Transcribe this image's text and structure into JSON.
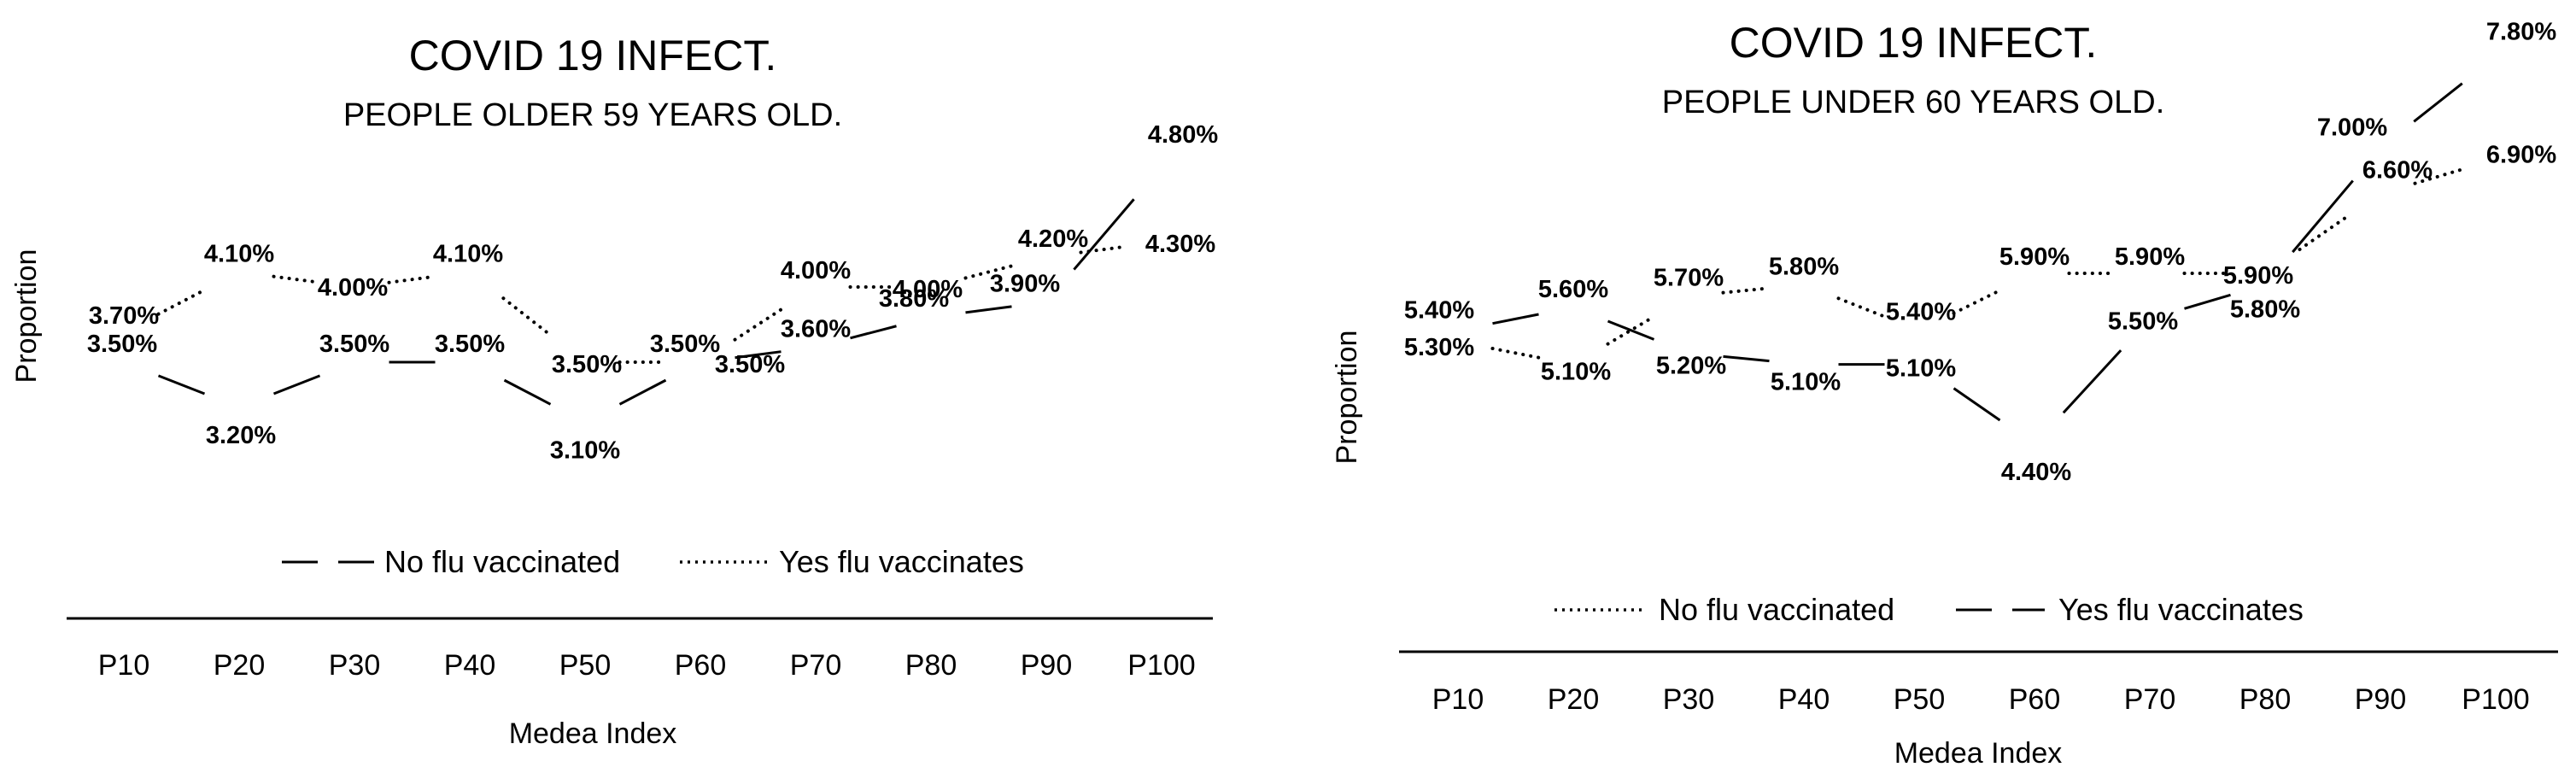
{
  "chart_data": [
    {
      "type": "line",
      "title": "COVID 19 INFECT.",
      "subtitle": "PEOPLE OLDER 59 YEARS OLD.",
      "xlabel": "Medea Index",
      "ylabel": "Proportion",
      "categories": [
        "P10",
        "P20",
        "P30",
        "P40",
        "P50",
        "P60",
        "P70",
        "P80",
        "P90",
        "P100"
      ],
      "ylim": [
        2.5,
        5.0
      ],
      "grid": false,
      "legend_position": "bottom",
      "series": [
        {
          "name": "No flu vaccinated",
          "line_style": "solid",
          "values": [
            3.5,
            3.2,
            3.5,
            3.5,
            3.1,
            3.5,
            3.6,
            3.8,
            3.9,
            4.8
          ],
          "value_labels": [
            "3.50%",
            "3.20%",
            "3.50%",
            "3.50%",
            "3.10%",
            "3.50%",
            "3.60%",
            "3.80%",
            "3.90%",
            "4.80%"
          ]
        },
        {
          "name": "Yes flu vaccinates",
          "line_style": "dotted",
          "values": [
            3.7,
            4.1,
            4.0,
            4.1,
            3.5,
            3.5,
            4.0,
            4.0,
            4.2,
            4.3
          ],
          "value_labels": [
            "3.70%",
            "4.10%",
            "4.00%",
            "4.10%",
            "3.50%",
            "3.50%",
            "4.00%",
            "4.00%",
            "4.20%",
            "4.30%"
          ]
        }
      ]
    },
    {
      "type": "line",
      "title": "COVID 19 INFECT.",
      "subtitle": "PEOPLE UNDER 60 YEARS OLD.",
      "xlabel": "Medea Index",
      "ylabel": "Proportion",
      "categories": [
        "P10",
        "P20",
        "P30",
        "P40",
        "P50",
        "P60",
        "P70",
        "P80",
        "P90",
        "P100"
      ],
      "ylim": [
        3.5,
        8.0
      ],
      "grid": false,
      "legend_position": "bottom",
      "series": [
        {
          "name": "No flu vaccinated",
          "line_style": "dotted",
          "values": [
            5.3,
            5.1,
            5.7,
            5.8,
            5.4,
            5.9,
            5.9,
            5.9,
            6.6,
            6.9
          ],
          "value_labels": [
            "5.30%",
            "5.10%",
            "5.70%",
            "5.80%",
            "5.40%",
            "5.90%",
            "5.90%",
            "5.90%",
            "6.60%",
            "6.90%"
          ]
        },
        {
          "name": "Yes flu vaccinates",
          "line_style": "solid",
          "values": [
            5.4,
            5.6,
            5.2,
            5.1,
            5.1,
            4.4,
            5.5,
            5.8,
            7.0,
            7.8
          ],
          "value_labels": [
            "5.40%",
            "5.60%",
            "5.20%",
            "5.10%",
            "5.10%",
            "4.40%",
            "5.50%",
            "5.80%",
            "7.00%",
            "7.80%"
          ]
        }
      ]
    }
  ]
}
